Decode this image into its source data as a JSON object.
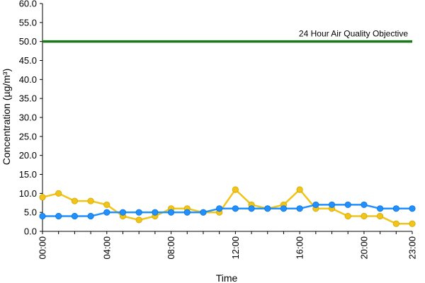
{
  "chart_data": {
    "type": "line",
    "title": "",
    "xlabel": "Time",
    "ylabel": "Concentration (µg/m³)",
    "ylim": [
      0,
      60
    ],
    "y_ticks": [
      "0.0",
      "5.0",
      "10.0",
      "15.0",
      "20.0",
      "25.0",
      "30.0",
      "35.0",
      "40.0",
      "45.0",
      "50.0",
      "55.0",
      "60.0"
    ],
    "x_tick_labels": [
      "00:00",
      "04:00",
      "08:00",
      "12:00",
      "16:00",
      "20:00",
      "23:00"
    ],
    "x": [
      "00:00",
      "01:00",
      "02:00",
      "03:00",
      "04:00",
      "05:00",
      "06:00",
      "07:00",
      "08:00",
      "09:00",
      "10:00",
      "11:00",
      "12:00",
      "13:00",
      "14:00",
      "15:00",
      "16:00",
      "17:00",
      "18:00",
      "19:00",
      "20:00",
      "21:00",
      "22:00",
      "23:00"
    ],
    "grid": false,
    "legend": "none",
    "series": [
      {
        "color": "#f0c419",
        "values": [
          9,
          10,
          8,
          8,
          7,
          4,
          3,
          4,
          6,
          6,
          5,
          5,
          11,
          7,
          6,
          7,
          11,
          6,
          6,
          4,
          4,
          4,
          2,
          2
        ]
      },
      {
        "color": "#1e90ff",
        "values": [
          4,
          4,
          4,
          4,
          5,
          5,
          5,
          5,
          5,
          5,
          5,
          6,
          6,
          6,
          6,
          6,
          6,
          7,
          7,
          7,
          7,
          6,
          6,
          6
        ]
      }
    ],
    "reference_line": {
      "label": "24 Hour Air Quality Objective",
      "value": 50,
      "color": "#1a7a1a"
    }
  }
}
